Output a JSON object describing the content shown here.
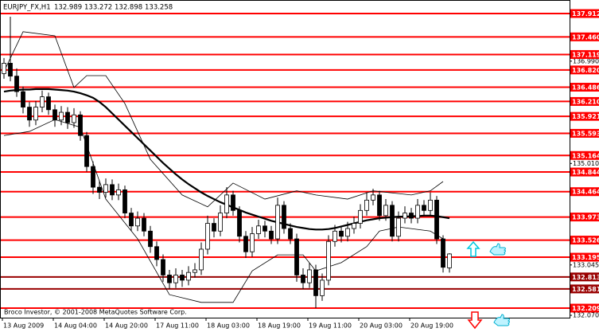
{
  "chart_data": {
    "type": "candlestick",
    "symbol": "EURJPY_FX,H1",
    "ohlc": [
      132.989,
      133.272,
      132.898,
      133.258
    ],
    "copyright": "Broco Investor, © 2001-2008 MetaQuotes Software Corp.",
    "categories": [
      "13 Aug 2009",
      null,
      null,
      null,
      null,
      null,
      null,
      null,
      "14 Aug 04:00",
      null,
      null,
      null,
      null,
      null,
      null,
      null,
      "14 Aug 20:00",
      null,
      null,
      null,
      null,
      null,
      null,
      null,
      "17 Aug 11:00",
      null,
      null,
      null,
      null,
      null,
      null,
      null,
      "18 Aug 03:00",
      null,
      null,
      null,
      null,
      null,
      null,
      null,
      "18 Aug 19:00",
      null,
      null,
      null,
      null,
      null,
      null,
      null,
      "19 Aug 11:00",
      null,
      null,
      null,
      null,
      null,
      null,
      null,
      "20 Aug 03:00",
      null,
      null,
      null,
      null,
      null,
      null,
      null,
      "20 Aug 19:00",
      null,
      null,
      null,
      null,
      null,
      null
    ],
    "open": [
      136.75,
      136.95,
      136.7,
      136.4,
      136.1,
      135.85,
      136.1,
      136.3,
      136.05,
      135.85,
      136.0,
      135.8,
      135.95,
      135.55,
      134.95,
      134.55,
      134.45,
      134.6,
      134.4,
      134.5,
      134.05,
      133.8,
      133.95,
      133.7,
      133.4,
      133.15,
      132.85,
      132.7,
      132.85,
      132.75,
      132.9,
      132.95,
      133.35,
      133.85,
      133.7,
      134.05,
      134.4,
      134.1,
      133.6,
      133.3,
      133.65,
      133.8,
      133.7,
      133.55,
      134.2,
      133.75,
      133.55,
      132.85,
      132.7,
      132.95,
      132.45,
      132.75,
      133.5,
      133.7,
      133.6,
      133.75,
      133.85,
      134.1,
      134.3,
      134.4,
      134.0,
      134.2,
      133.6,
      133.95,
      134.05,
      133.95,
      134.2,
      134.1,
      134.3,
      133.55,
      132.989
    ],
    "high": [
      137.05,
      137.85,
      136.85,
      136.5,
      136.2,
      136.22,
      136.42,
      136.38,
      136.15,
      136.12,
      136.1,
      136.08,
      136.02,
      135.62,
      135.05,
      134.68,
      134.72,
      134.7,
      134.62,
      134.58,
      134.15,
      134.08,
      134.05,
      133.8,
      133.5,
      133.25,
      132.95,
      132.98,
      132.95,
      133.02,
      133.08,
      133.48,
      134.0,
      133.95,
      134.2,
      134.55,
      134.48,
      134.18,
      133.7,
      133.78,
      133.92,
      133.9,
      133.8,
      134.35,
      134.28,
      133.85,
      133.65,
      132.98,
      133.08,
      133.05,
      132.88,
      133.62,
      133.82,
      133.8,
      133.88,
      133.98,
      134.22,
      134.45,
      134.52,
      134.48,
      134.32,
      134.28,
      134.08,
      134.18,
      134.15,
      134.32,
      134.3,
      134.45,
      134.38,
      133.62,
      133.272
    ],
    "low": [
      136.65,
      136.6,
      136.3,
      135.98,
      135.72,
      135.75,
      136.0,
      135.95,
      135.72,
      135.75,
      135.68,
      135.7,
      135.45,
      134.85,
      134.42,
      134.32,
      134.35,
      134.3,
      134.3,
      133.95,
      133.7,
      133.7,
      133.6,
      133.28,
      133.02,
      132.72,
      132.58,
      132.6,
      132.62,
      132.65,
      132.8,
      132.85,
      133.25,
      133.58,
      133.6,
      133.95,
      134.0,
      133.48,
      133.18,
      133.2,
      133.55,
      133.58,
      133.45,
      133.45,
      133.65,
      133.45,
      132.72,
      132.58,
      132.6,
      132.21,
      132.35,
      132.65,
      133.4,
      133.48,
      133.5,
      133.65,
      133.75,
      134.0,
      134.2,
      133.9,
      133.9,
      133.5,
      133.5,
      133.85,
      133.85,
      133.85,
      134.0,
      134.0,
      133.45,
      132.9,
      132.898
    ],
    "close": [
      136.95,
      136.7,
      136.4,
      136.1,
      135.85,
      136.1,
      136.3,
      136.05,
      135.85,
      136.0,
      135.8,
      135.95,
      135.55,
      134.95,
      134.55,
      134.45,
      134.6,
      134.4,
      134.5,
      134.05,
      133.8,
      133.95,
      133.7,
      133.4,
      133.15,
      132.85,
      132.7,
      132.85,
      132.75,
      132.9,
      132.95,
      133.35,
      133.85,
      133.7,
      134.05,
      134.4,
      134.1,
      133.6,
      133.3,
      133.65,
      133.8,
      133.7,
      133.55,
      134.2,
      133.75,
      133.55,
      132.85,
      132.7,
      132.95,
      132.45,
      132.75,
      133.5,
      133.7,
      133.6,
      133.75,
      133.85,
      134.1,
      134.3,
      134.4,
      134.0,
      134.2,
      133.6,
      133.95,
      134.05,
      133.95,
      134.2,
      134.1,
      134.3,
      133.55,
      133.0,
      133.258
    ],
    "up_color": "#ffffff",
    "down_color": "#000000",
    "outline_color": "#000000",
    "ylim": [
      132.009,
      138.174
    ],
    "yticks": [
      {
        "value": 136.99,
        "label": "136.990"
      },
      {
        "value": 135.01,
        "label": "135.010"
      },
      133.045,
      {
        "value": 132.07,
        "label": "132.070"
      }
    ],
    "levels": [
      {
        "value": 137.912,
        "color": "#ff0000"
      },
      {
        "value": 137.46,
        "label": "137.460",
        "color": "#ff0000"
      },
      {
        "value": 137.119,
        "color": "#ff0000"
      },
      {
        "value": 136.82,
        "label": "136.820",
        "color": "#ff0000"
      },
      {
        "value": 136.486,
        "color": "#ff0000"
      },
      {
        "value": 136.21,
        "label": "136.210",
        "color": "#ff0000"
      },
      {
        "value": 135.921,
        "color": "#ff0000"
      },
      {
        "value": 135.593,
        "color": "#ff0000"
      },
      {
        "value": 135.164,
        "color": "#ff0000"
      },
      {
        "value": 134.844,
        "color": "#ff0000"
      },
      {
        "value": 134.464,
        "color": "#ff0000"
      },
      {
        "value": 133.973,
        "color": "#ff0000"
      },
      {
        "value": 133.526,
        "color": "#ff0000"
      },
      {
        "value": 133.195,
        "color": "#ff0000"
      },
      {
        "value": 132.813,
        "color": "#990000"
      },
      {
        "value": 132.581,
        "color": "#990000"
      },
      {
        "value": 132.209,
        "color": "#ff0000"
      }
    ],
    "overlays": [
      {
        "values": [
          136.4,
          136.42,
          136.43,
          136.44,
          136.44,
          136.45,
          136.45,
          136.45,
          136.44,
          136.43,
          136.42,
          136.4,
          136.37,
          136.33,
          136.28,
          136.2,
          136.1,
          135.98,
          135.86,
          135.74,
          135.62,
          135.5,
          135.38,
          135.26,
          135.14,
          135.02,
          134.91,
          134.8,
          134.7,
          134.61,
          134.53,
          134.45,
          134.38,
          134.32,
          134.26,
          134.21,
          134.16,
          134.11,
          134.06,
          134.02,
          133.98,
          133.94,
          133.9,
          133.87,
          133.84,
          133.81,
          133.78,
          133.76,
          133.74,
          133.73,
          133.73,
          133.74,
          133.76,
          133.79,
          133.82,
          133.85,
          133.88,
          133.91,
          133.93,
          133.95,
          133.96,
          133.97,
          133.98,
          133.98,
          133.99,
          133.99,
          134.0,
          134.0,
          133.99,
          133.97,
          133.95
        ],
        "color": "#000000",
        "width": 2.2
      },
      {
        "x": [
          0,
          3,
          8,
          11,
          13,
          16,
          19,
          23,
          28,
          32,
          36,
          41,
          46,
          49,
          54,
          58,
          64,
          67,
          69
        ],
        "values": [
          136.79,
          137.56,
          137.48,
          136.48,
          136.71,
          136.71,
          136.17,
          135.09,
          134.4,
          134.17,
          134.63,
          134.32,
          134.48,
          134.4,
          134.32,
          134.48,
          134.4,
          134.48,
          134.66
        ],
        "color": "#000000",
        "width": 0.8
      },
      {
        "x": [
          0,
          4,
          8,
          12,
          16,
          21,
          26,
          31,
          36,
          39,
          43,
          47,
          49,
          53,
          57,
          59,
          62,
          67,
          69
        ],
        "values": [
          135.55,
          135.63,
          135.86,
          135.71,
          134.32,
          133.55,
          132.47,
          132.32,
          132.32,
          132.93,
          133.24,
          133.24,
          132.93,
          133.09,
          133.4,
          133.7,
          133.78,
          133.7,
          133.55
        ],
        "color": "#000000",
        "width": 0.8
      }
    ]
  }
}
